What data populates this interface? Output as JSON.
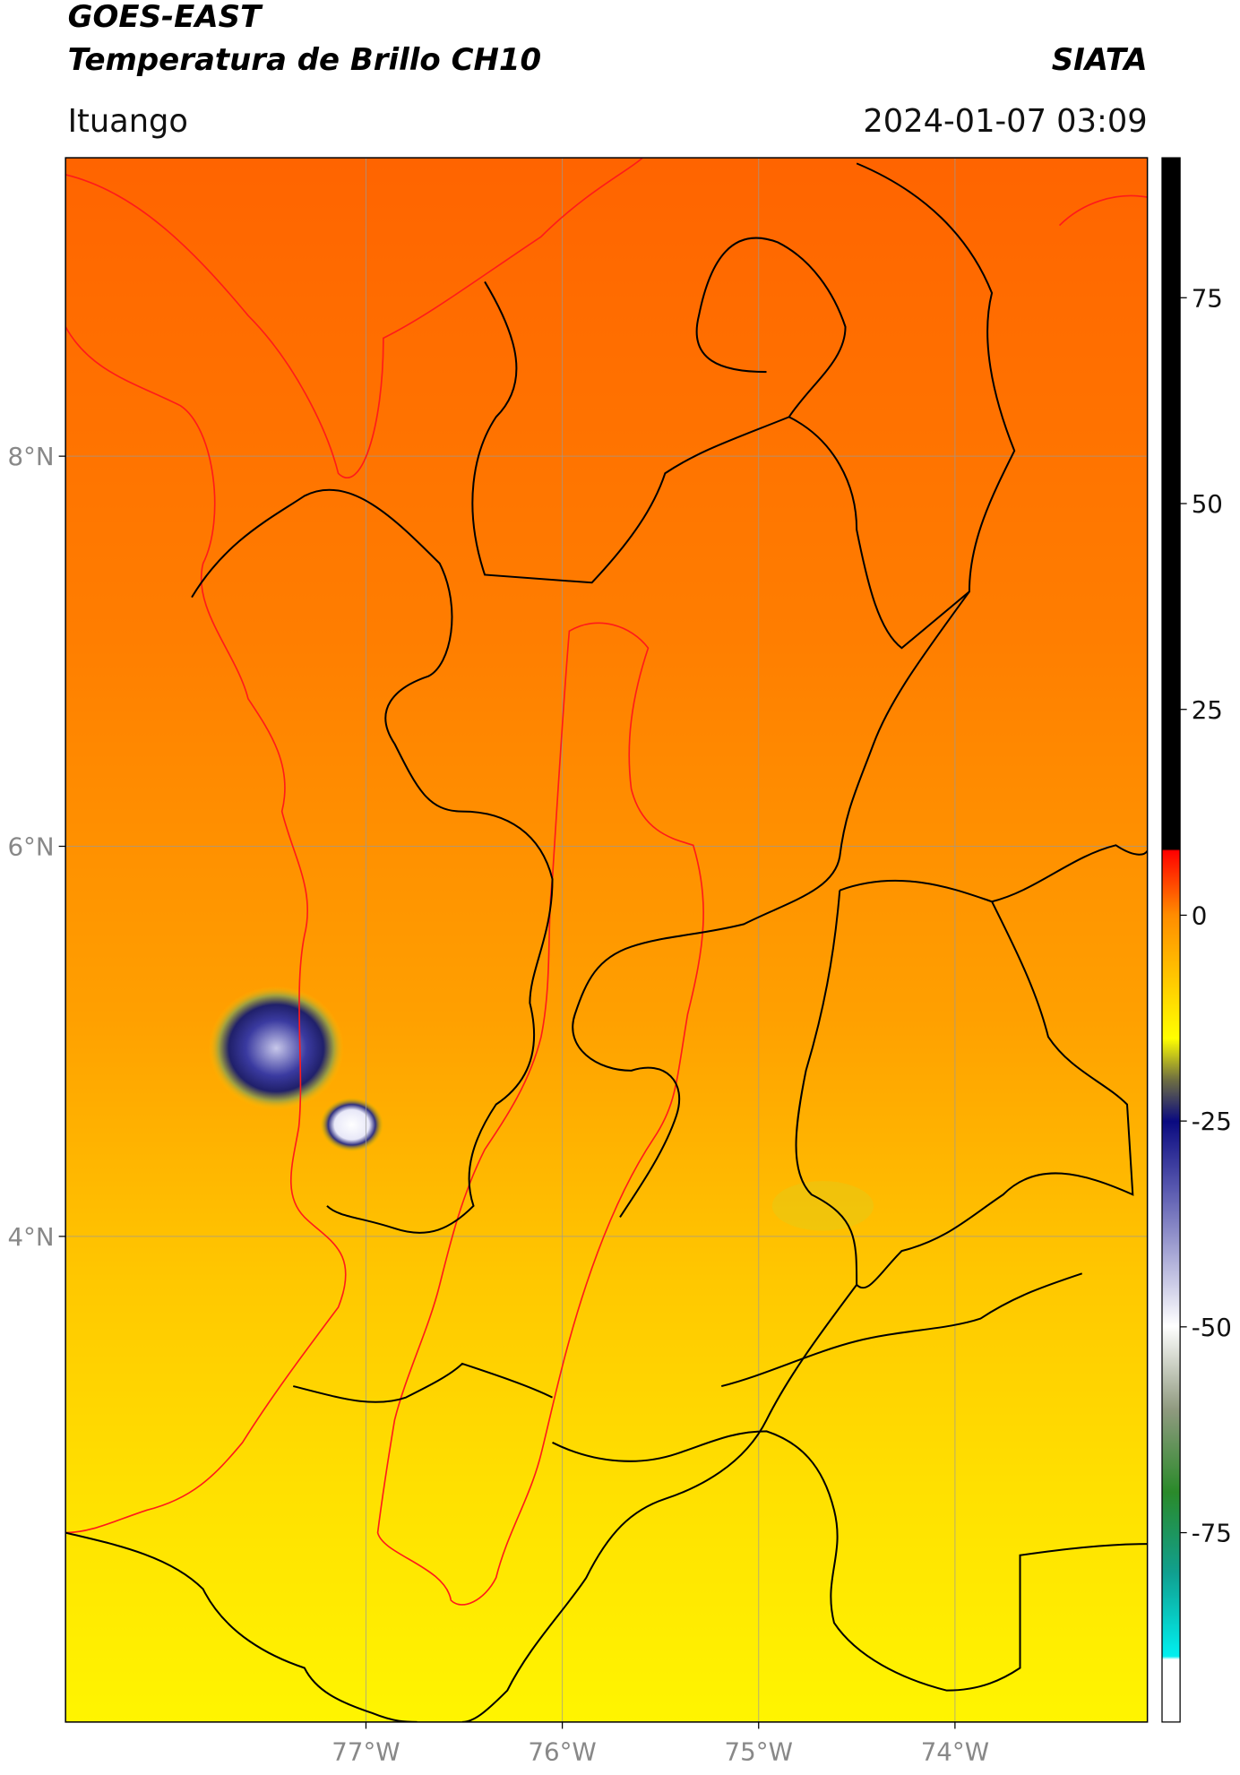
{
  "header": {
    "title": "GOES-EAST",
    "subtitle": "Temperatura de Brillo CH10",
    "source": "SIATA",
    "location": "Ituango",
    "datetime": "2024-01-07 03:09"
  },
  "map": {
    "lon_range": [
      -78.53,
      -73.02
    ],
    "lat_range": [
      1.51,
      9.53
    ],
    "lat_ticks": [
      {
        "value": 8,
        "label": "8°N"
      },
      {
        "value": 6,
        "label": "6°N"
      },
      {
        "value": 4,
        "label": "4°N"
      }
    ],
    "lon_ticks": [
      {
        "value": -77,
        "label": "77°W"
      },
      {
        "value": -76,
        "label": "76°W"
      },
      {
        "value": -75,
        "label": "75°W"
      },
      {
        "value": -74,
        "label": "74°W"
      }
    ],
    "grid": true
  },
  "colorbar": {
    "lim": [
      -98,
      92
    ],
    "ticks": [
      75,
      50,
      25,
      0,
      -25,
      -50,
      -75
    ]
  }
}
